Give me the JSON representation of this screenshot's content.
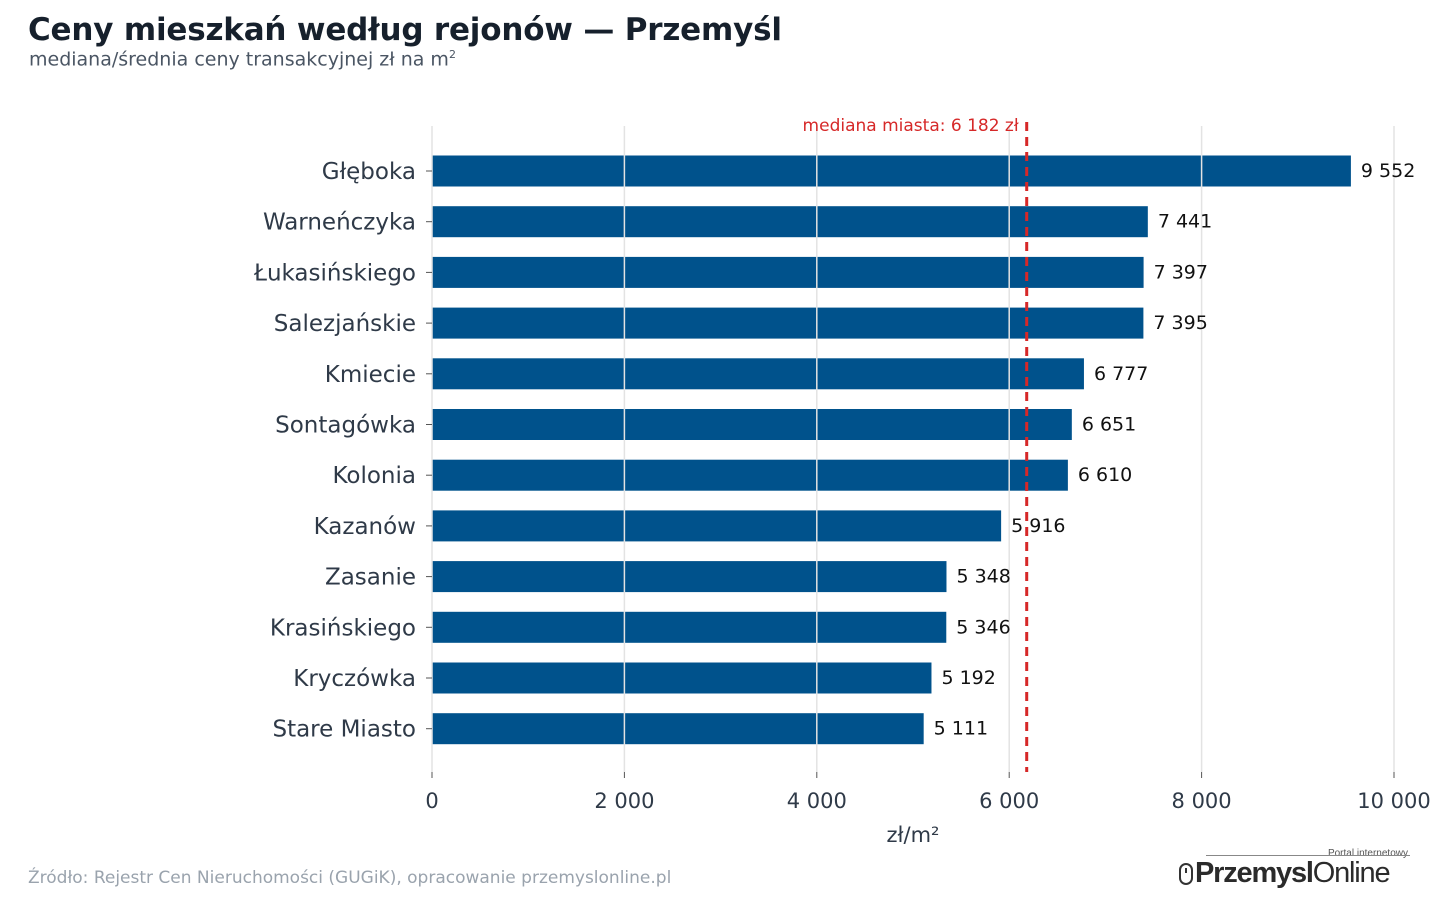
{
  "header": {
    "title": "Ceny mieszkań według rejonów — Przemyśl",
    "subtitle": "mediana/średnia ceny transakcyjnej zł na m",
    "subtitle_sup": "2"
  },
  "footer": {
    "source": "Źródło: Rejestr Cen Nieruchomości (GUGiK), opracowanie przemyslonline.pl",
    "logo_tagline": "Portal internetowy",
    "logo_word_bold": "Przemysl",
    "logo_word_regular": "Online"
  },
  "chart_data": {
    "type": "bar",
    "orientation": "horizontal",
    "categories": [
      "Głęboka",
      "Warneńczyka",
      "Łukasińskiego",
      "Salezjańskie",
      "Kmiecie",
      "Sontagówka",
      "Kolonia",
      "Kazanów",
      "Zasanie",
      "Krasińskiego",
      "Kryczówka",
      "Stare Miasto"
    ],
    "values": [
      9552,
      7441,
      7397,
      7395,
      6777,
      6651,
      6610,
      5916,
      5348,
      5346,
      5192,
      5111
    ],
    "value_labels": [
      "9 552",
      "7 441",
      "7 397",
      "7 395",
      "6 777",
      "6 651",
      "6 610",
      "5 916",
      "5 348",
      "5 346",
      "5 192",
      "5 111"
    ],
    "xlabel": "zł/m²",
    "ylabel": "",
    "xlim": [
      0,
      10000
    ],
    "xticks": [
      0,
      2000,
      4000,
      6000,
      8000,
      10000
    ],
    "xtick_labels": [
      "0",
      "2 000",
      "4 000",
      "6 000",
      "8 000",
      "10 000"
    ],
    "grid": "vertical",
    "reference_line": {
      "value": 6182,
      "label": "mediana miasta: 6 182 zł",
      "style": "dashed"
    },
    "colors": {
      "bar": "#00528c",
      "reference": "#d62828",
      "grid": "#e3e3e3",
      "text": "#2f3a48",
      "value_text": "#111111"
    }
  }
}
